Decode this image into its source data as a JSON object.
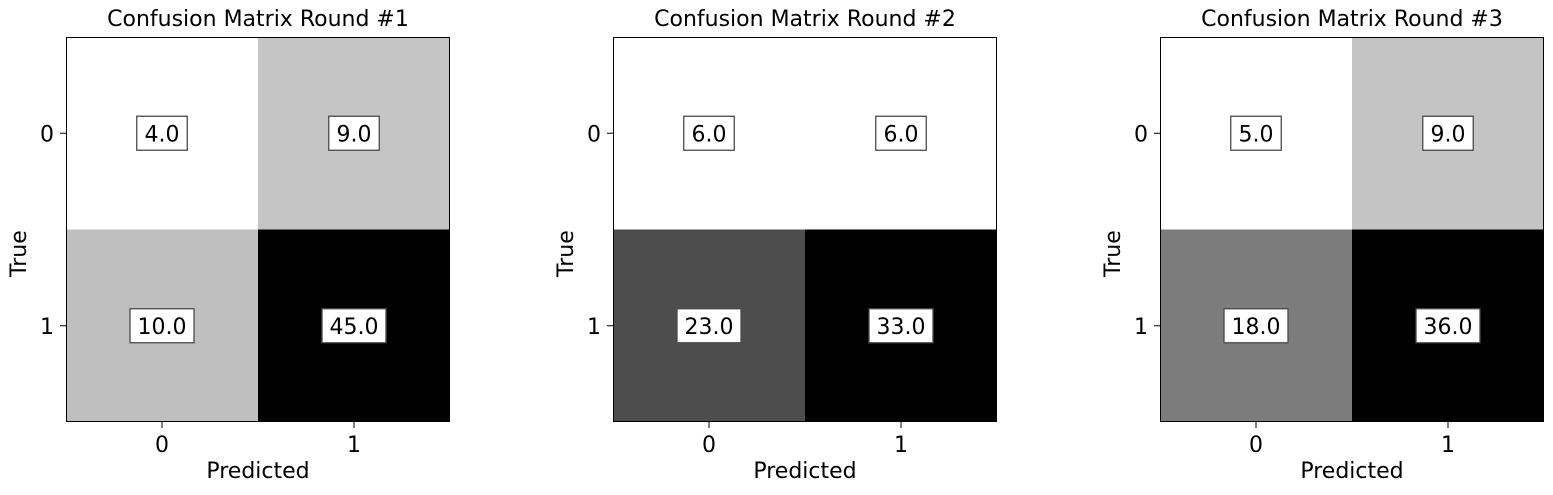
{
  "chart_data": [
    {
      "type": "heatmap",
      "title": "Confusion Matrix Round #1",
      "xlabel": "Predicted",
      "ylabel": "True",
      "x_categories": [
        "0",
        "1"
      ],
      "y_categories": [
        "0",
        "1"
      ],
      "values": [
        [
          4.0,
          9.0
        ],
        [
          10.0,
          45.0
        ]
      ],
      "cell_labels": [
        [
          "4.0",
          "9.0"
        ],
        [
          "10.0",
          "45.0"
        ]
      ],
      "colormap": "greys"
    },
    {
      "type": "heatmap",
      "title": "Confusion Matrix Round #2",
      "xlabel": "Predicted",
      "ylabel": "True",
      "x_categories": [
        "0",
        "1"
      ],
      "y_categories": [
        "0",
        "1"
      ],
      "values": [
        [
          6.0,
          6.0
        ],
        [
          23.0,
          33.0
        ]
      ],
      "cell_labels": [
        [
          "6.0",
          "6.0"
        ],
        [
          "23.0",
          "33.0"
        ]
      ],
      "colormap": "greys"
    },
    {
      "type": "heatmap",
      "title": "Confusion Matrix Round #3",
      "xlabel": "Predicted",
      "ylabel": "True",
      "x_categories": [
        "0",
        "1"
      ],
      "y_categories": [
        "0",
        "1"
      ],
      "values": [
        [
          5.0,
          9.0
        ],
        [
          18.0,
          36.0
        ]
      ],
      "cell_labels": [
        [
          "5.0",
          "9.0"
        ],
        [
          "18.0",
          "36.0"
        ]
      ],
      "colormap": "greys"
    }
  ],
  "colors": {
    "min": "#ffffff",
    "max": "#000000",
    "label_box_border": "#4a4a4a"
  }
}
